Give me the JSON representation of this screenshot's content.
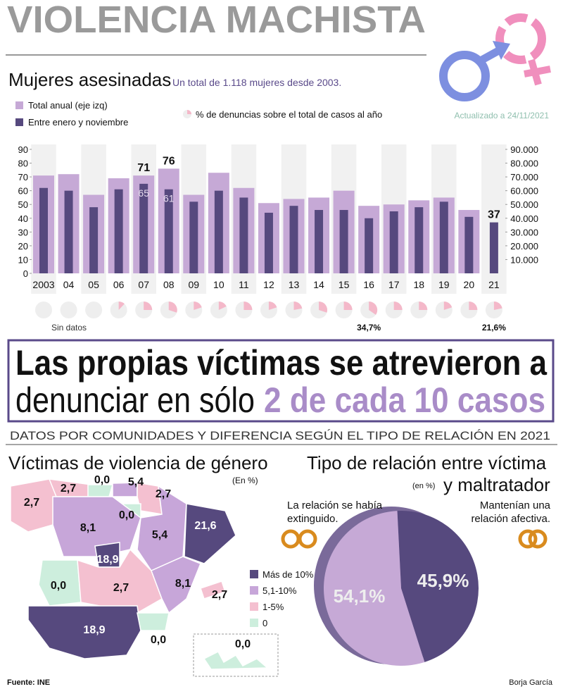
{
  "title": "VIOLENCIA MACHISTA",
  "headline": {
    "line1": "Las propias víctimas se atrevieron a",
    "line2": "denunciar en sólo",
    "highlight": "2 de cada 10 casos"
  },
  "section_title": "DATOS POR COMUNIDADES Y DIFERENCIA SEGÚN EL TIPO DE RELACIÓN EN 2021",
  "footer": {
    "source_label": "Fuente:",
    "source": "INE",
    "author": "Borja García"
  },
  "chart_data": [
    {
      "type": "bar",
      "title": "Mujeres asesinadas",
      "subtitle": "Un total de 1.118 mujeres desde 2003.",
      "annotation": "Actualizado a 24/11/2021",
      "categories": [
        "2003",
        "04",
        "05",
        "06",
        "07",
        "08",
        "09",
        "10",
        "11",
        "12",
        "13",
        "14",
        "15",
        "16",
        "17",
        "18",
        "19",
        "20",
        "21"
      ],
      "series": [
        {
          "name": "Total anual (eje izq)",
          "color": "#c6a9d6",
          "values": [
            71,
            72,
            57,
            69,
            71,
            76,
            57,
            73,
            62,
            51,
            54,
            55,
            60,
            49,
            50,
            53,
            55,
            46,
            null
          ],
          "value_labels": [
            null,
            null,
            null,
            null,
            "71",
            "76",
            null,
            null,
            null,
            null,
            null,
            null,
            null,
            null,
            null,
            null,
            null,
            null,
            null
          ]
        },
        {
          "name": "Entre enero y noviembre",
          "color": "#56497e",
          "values": [
            62,
            60,
            48,
            61,
            65,
            61,
            52,
            60,
            55,
            44,
            49,
            46,
            46,
            40,
            45,
            48,
            52,
            41,
            37
          ],
          "value_labels": [
            null,
            null,
            null,
            null,
            "65",
            "61",
            null,
            null,
            null,
            null,
            null,
            null,
            null,
            null,
            null,
            null,
            null,
            null,
            "37"
          ]
        }
      ],
      "ylim": [
        0,
        90
      ],
      "yticks": [
        0,
        10,
        20,
        30,
        40,
        50,
        60,
        70,
        80,
        90
      ],
      "y2lim": [
        0,
        90000
      ],
      "y2ticks": [
        {
          "value": 10000,
          "label": "10.000"
        },
        {
          "value": 20000,
          "label": "20.000"
        },
        {
          "value": 30000,
          "label": "30.000"
        },
        {
          "value": 40000,
          "label": "40.000"
        },
        {
          "value": 50000,
          "label": "50.000"
        },
        {
          "value": 60000,
          "label": "60.000"
        },
        {
          "value": 70000,
          "label": "70.000"
        },
        {
          "value": 80000,
          "label": "80.000"
        },
        {
          "value": 90000,
          "label": "90.000"
        }
      ],
      "grid": false
    },
    {
      "type": "pies",
      "name": "% de denuncias sobre el total de casos al año",
      "annotation": "Sin datos",
      "color": "#f4b8c9",
      "values": [
        null,
        null,
        null,
        12,
        25,
        30,
        20,
        18,
        25,
        20,
        22,
        30,
        25,
        34.7,
        25,
        25,
        20,
        25,
        21.6
      ],
      "value_labels": [
        null,
        null,
        null,
        null,
        null,
        null,
        null,
        null,
        null,
        null,
        null,
        null,
        null,
        "34,7%",
        null,
        null,
        null,
        null,
        "21,6%"
      ]
    },
    {
      "type": "map",
      "title": "Víctimas de violencia de género",
      "unit": "(En %)",
      "values": [
        2.7,
        2.7,
        0.0,
        5.4,
        2.7,
        0.0,
        8.1,
        5.4,
        21.6,
        18.9,
        0.0,
        2.7,
        8.1,
        2.7,
        18.9,
        0.0,
        0.0
      ],
      "value_labels": [
        "2,7",
        "2,7",
        "0,0",
        "5,4",
        "2,7",
        "0,0",
        "8,1",
        "5,4",
        "21,6",
        "18,9",
        "0,0",
        "2,7",
        "8,1",
        "2,7",
        "18,9",
        "0,0",
        "0,0"
      ],
      "colors": [
        "#f4c0d0",
        "#f4c0d0",
        "#cdeedd",
        "#c7a6d9",
        "#f4c0d0",
        "#cdeedd",
        "#c7a6d9",
        "#c7a6d9",
        "#56497e",
        "#56497e",
        "#cdeedd",
        "#f4c0d0",
        "#c7a6d9",
        "#f4c0d0",
        "#56497e",
        "#cdeedd",
        "#cdeedd"
      ],
      "legend": {
        "labels": [
          "Más de 10%",
          "5,1-10%",
          "1-5%",
          "0"
        ],
        "colors": [
          "#56497e",
          "#c7a6d9",
          "#f4c0d0",
          "#cdeedd"
        ]
      }
    },
    {
      "type": "pie",
      "title": "Tipo de relación entre víctima",
      "title_line2": "y maltratador",
      "unit": "(en %)",
      "categories": [
        [
          "Mantenían una",
          "relación afectiva."
        ],
        [
          "La relación se había",
          "extinguido."
        ]
      ],
      "values": [
        45.9,
        54.1
      ],
      "value_labels": [
        "45,9%",
        "54,1%"
      ],
      "colors": [
        "#56497e",
        "#c6a9d6"
      ]
    }
  ]
}
